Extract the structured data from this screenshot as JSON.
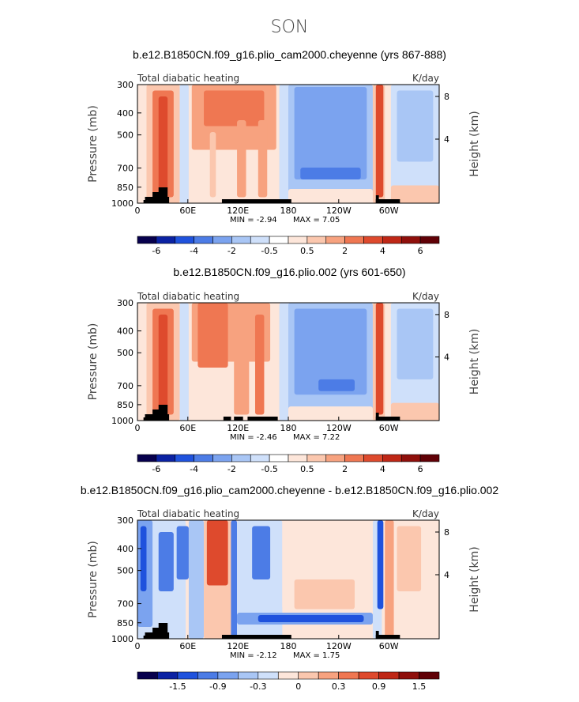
{
  "page": {
    "season_title": "SON"
  },
  "chart_data": [
    {
      "type": "heatmap",
      "title": "b.e12.B1850CN.f09_g16.plio_cam2000.cheyenne (yrs 867-888)",
      "left_label": "Total diabatic heating",
      "units": "K/day",
      "ylabel": "Pressure (mb)",
      "right_ylabel": "Height (km)",
      "y_ticks": [
        "300",
        "400",
        "500",
        "700",
        "850",
        "1000"
      ],
      "right_ticks": [
        "8",
        "4"
      ],
      "x_ticks": [
        "0",
        "60E",
        "120E",
        "180",
        "120W",
        "60W"
      ],
      "min_text": "MIN =   -2.94",
      "max_text": "MAX =    7.05",
      "colorbar_labels": [
        "-6",
        "-4",
        "-2",
        "-0.5",
        "0.5",
        "2",
        "4",
        "6"
      ],
      "colorbar_colors": [
        "#07004d",
        "#0b22a3",
        "#1f52dd",
        "#4c7ce6",
        "#7ba3ef",
        "#a9c6f5",
        "#cfe0fa",
        "#ffffff",
        "#fde6da",
        "#fbc7ae",
        "#f7a27f",
        "#ef7752",
        "#de4a2d",
        "#bf2716",
        "#8f0f0b",
        "#600006"
      ]
    },
    {
      "type": "heatmap",
      "title": "b.e12.B1850CN.f09_g16.plio.002 (yrs 601-650)",
      "left_label": "Total diabatic heating",
      "units": "K/day",
      "ylabel": "Pressure (mb)",
      "right_ylabel": "Height (km)",
      "y_ticks": [
        "300",
        "400",
        "500",
        "700",
        "850",
        "1000"
      ],
      "right_ticks": [
        "8",
        "4"
      ],
      "x_ticks": [
        "0",
        "60E",
        "120E",
        "180",
        "120W",
        "60W"
      ],
      "min_text": "MIN =   -2.46",
      "max_text": "MAX =    7.22",
      "colorbar_labels": [
        "-6",
        "-4",
        "-2",
        "-0.5",
        "0.5",
        "2",
        "4",
        "6"
      ],
      "colorbar_colors": [
        "#07004d",
        "#0b22a3",
        "#1f52dd",
        "#4c7ce6",
        "#7ba3ef",
        "#a9c6f5",
        "#cfe0fa",
        "#ffffff",
        "#fde6da",
        "#fbc7ae",
        "#f7a27f",
        "#ef7752",
        "#de4a2d",
        "#bf2716",
        "#8f0f0b",
        "#600006"
      ]
    },
    {
      "type": "heatmap",
      "title": "b.e12.B1850CN.f09_g16.plio_cam2000.cheyenne - b.e12.B1850CN.f09_g16.plio.002",
      "left_label": "Total diabatic heating",
      "units": "K/day",
      "ylabel": "Pressure (mb)",
      "right_ylabel": "Height (km)",
      "y_ticks": [
        "300",
        "400",
        "500",
        "700",
        "850",
        "1000"
      ],
      "right_ticks": [
        "8",
        "4"
      ],
      "x_ticks": [
        "0",
        "60E",
        "120E",
        "180",
        "120W",
        "60W"
      ],
      "min_text": "MIN =   -2.12",
      "max_text": "MAX =    1.75",
      "colorbar_labels": [
        "-1.5",
        "-0.9",
        "-0.3",
        "0",
        "0.3",
        "0.9",
        "1.5"
      ],
      "colorbar_colors": [
        "#07004d",
        "#0b22a3",
        "#1f52dd",
        "#4c7ce6",
        "#7ba3ef",
        "#a9c6f5",
        "#cfe0fa",
        "#fde6da",
        "#fbc7ae",
        "#f7a27f",
        "#ef7752",
        "#de4a2d",
        "#bf2716",
        "#8f0f0b",
        "#600006"
      ]
    }
  ]
}
